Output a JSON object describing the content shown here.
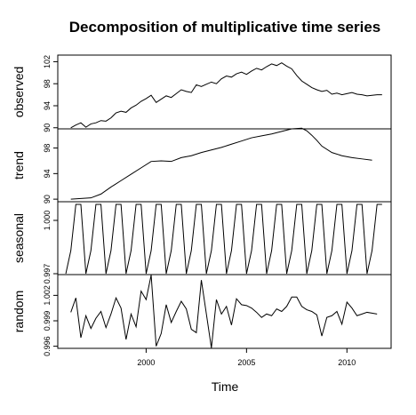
{
  "chart_data": {
    "type": "line",
    "title": "Decomposition of multiplicative time series",
    "xlabel": "Time",
    "xlim": [
      1995.6,
      2012.2
    ],
    "x_ticks": [
      "2000",
      "2005",
      "2010"
    ],
    "panels": [
      {
        "name": "observed",
        "ylabel": "observed",
        "ylim": [
          89.8,
          103.2
        ],
        "y_ticks": [
          "90",
          "94",
          "98",
          "102"
        ],
        "x": [
          1996.25,
          1996.5,
          1996.75,
          1997.0,
          1997.25,
          1997.5,
          1997.75,
          1998.0,
          1998.25,
          1998.5,
          1998.75,
          1999.0,
          1999.25,
          1999.5,
          1999.75,
          2000.0,
          2000.25,
          2000.5,
          2000.75,
          2001.0,
          2001.25,
          2001.5,
          2001.75,
          2002.0,
          2002.25,
          2002.5,
          2002.75,
          2003.0,
          2003.25,
          2003.5,
          2003.75,
          2004.0,
          2004.25,
          2004.5,
          2004.75,
          2005.0,
          2005.25,
          2005.5,
          2005.75,
          2006.0,
          2006.25,
          2006.5,
          2006.75,
          2007.0,
          2007.25,
          2007.5,
          2007.75,
          2008.0,
          2008.25,
          2008.5,
          2008.75,
          2009.0,
          2009.25,
          2009.5,
          2009.75,
          2010.0,
          2010.25,
          2010.5,
          2010.75,
          2011.0,
          2011.25,
          2011.5,
          2011.75
        ],
        "values": [
          90.0,
          90.5,
          90.9,
          90.1,
          90.7,
          90.9,
          91.3,
          91.2,
          91.8,
          92.7,
          93.0,
          92.8,
          93.6,
          94.1,
          94.8,
          95.3,
          95.9,
          94.6,
          95.2,
          95.8,
          95.5,
          96.2,
          96.9,
          96.6,
          96.4,
          97.8,
          97.5,
          97.9,
          98.3,
          98.0,
          98.9,
          99.4,
          99.2,
          99.8,
          100.1,
          99.7,
          100.3,
          100.8,
          100.5,
          101.1,
          101.6,
          101.3,
          101.8,
          101.2,
          100.7,
          99.5,
          98.5,
          97.9,
          97.3,
          96.9,
          96.6,
          96.8,
          96.1,
          96.3,
          96.0,
          96.2,
          96.4,
          96.1,
          96.0,
          95.8,
          95.9,
          96.0,
          96.0
        ]
      },
      {
        "name": "trend",
        "ylabel": "trend",
        "ylim": [
          89.6,
          101.0
        ],
        "y_ticks": [
          "90",
          "94",
          "98"
        ],
        "x": [
          1996.25,
          1996.75,
          1997.25,
          1997.75,
          1998.25,
          1998.75,
          1999.25,
          1999.75,
          2000.25,
          2000.75,
          2001.25,
          2001.75,
          2002.25,
          2002.75,
          2003.25,
          2003.75,
          2004.25,
          2004.75,
          2005.25,
          2005.75,
          2006.25,
          2006.75,
          2007.25,
          2007.75,
          2008.0,
          2008.25,
          2008.5,
          2008.75,
          2009.25,
          2009.75,
          2010.25,
          2010.75,
          2011.25
        ],
        "values": [
          90.0,
          90.1,
          90.2,
          90.8,
          91.9,
          92.9,
          93.9,
          94.9,
          95.9,
          96.0,
          95.9,
          96.5,
          96.8,
          97.3,
          97.7,
          98.1,
          98.6,
          99.1,
          99.6,
          99.9,
          100.2,
          100.6,
          101.0,
          101.1,
          100.7,
          100.0,
          99.2,
          98.3,
          97.3,
          96.8,
          96.5,
          96.3,
          96.1
        ]
      },
      {
        "name": "seasonal",
        "ylabel": "seasonal",
        "ylim": [
          0.99695,
          1.00105
        ],
        "y_ticks": [
          "0.997",
          "1.000"
        ],
        "x": [
          1996.0,
          1996.25,
          1996.5,
          1996.75,
          1997.0,
          1997.25,
          1997.5,
          1997.75,
          1998.0,
          1998.25,
          1998.5,
          1998.75,
          1999.0,
          1999.25,
          1999.5,
          1999.75,
          2000.0,
          2000.25,
          2000.5,
          2000.75,
          2001.0,
          2001.25,
          2001.5,
          2001.75,
          2002.0,
          2002.25,
          2002.5,
          2002.75,
          2003.0,
          2003.25,
          2003.5,
          2003.75,
          2004.0,
          2004.25,
          2004.5,
          2004.75,
          2005.0,
          2005.25,
          2005.5,
          2005.75,
          2006.0,
          2006.25,
          2006.5,
          2006.75,
          2007.0,
          2007.25,
          2007.5,
          2007.75,
          2008.0,
          2008.25,
          2008.5,
          2008.75,
          2009.0,
          2009.25,
          2009.5,
          2009.75,
          2010.0,
          2010.25,
          2010.5,
          2010.75,
          2011.0,
          2011.25,
          2011.5,
          2011.75
        ],
        "values": [
          0.997,
          0.9983,
          1.0009,
          1.0009,
          0.997,
          0.9983,
          1.0009,
          1.0009,
          0.997,
          0.9983,
          1.0009,
          1.0009,
          0.997,
          0.9983,
          1.0009,
          1.0009,
          0.997,
          0.9983,
          1.0009,
          1.0009,
          0.997,
          0.9983,
          1.0009,
          1.0009,
          0.997,
          0.9983,
          1.0009,
          1.0009,
          0.997,
          0.9983,
          1.0009,
          1.0009,
          0.997,
          0.9983,
          1.0009,
          1.0009,
          0.997,
          0.9983,
          1.0009,
          1.0009,
          0.997,
          0.9983,
          1.0009,
          1.0009,
          0.997,
          0.9983,
          1.0009,
          1.0009,
          0.997,
          0.9983,
          1.0009,
          1.0009,
          0.997,
          0.9983,
          1.0009,
          1.0009,
          0.997,
          0.9983,
          1.0009,
          1.0009,
          0.997,
          0.9983,
          1.0009,
          1.0009
        ]
      },
      {
        "name": "random",
        "ylabel": "random",
        "ylim": [
          0.99575,
          1.00445
        ],
        "y_ticks": [
          "0.996",
          "0.999",
          "1.002"
        ],
        "x": [
          1996.25,
          1996.5,
          1996.75,
          1997.0,
          1997.25,
          1997.5,
          1997.75,
          1998.0,
          1998.25,
          1998.5,
          1998.75,
          1999.0,
          1999.25,
          1999.5,
          1999.75,
          2000.0,
          2000.25,
          2000.5,
          2000.75,
          2001.0,
          2001.25,
          2001.5,
          2001.75,
          2002.0,
          2002.25,
          2002.5,
          2002.75,
          2003.0,
          2003.25,
          2003.5,
          2003.75,
          2004.0,
          2004.25,
          2004.5,
          2004.75,
          2005.0,
          2005.25,
          2005.5,
          2005.75,
          2006.0,
          2006.25,
          2006.5,
          2006.75,
          2007.0,
          2007.25,
          2007.5,
          2007.75,
          2008.0,
          2008.25,
          2008.5,
          2008.75,
          2009.0,
          2009.25,
          2009.5,
          2009.75,
          2010.0,
          2010.25,
          2010.5,
          2010.75,
          2011.0,
          2011.25,
          2011.5
        ],
        "values": [
          1.0,
          1.0017,
          0.997,
          0.9996,
          0.9981,
          0.9993,
          1.0001,
          0.9982,
          0.9998,
          1.0017,
          1.0005,
          0.9968,
          0.9998,
          0.9983,
          1.0025,
          1.0015,
          1.0044,
          0.996,
          0.9975,
          1.0009,
          0.9988,
          1.0001,
          1.0013,
          1.0004,
          0.998,
          0.9976,
          1.0038,
          0.9998,
          0.9958,
          1.0015,
          0.9998,
          1.0007,
          0.9985,
          1.0016,
          1.0009,
          1.0008,
          1.0005,
          1.0,
          0.9994,
          0.9998,
          0.9996,
          1.0004,
          1.0001,
          1.0007,
          1.0018,
          1.0018,
          1.0007,
          1.0003,
          1.0001,
          0.9997,
          0.9972,
          0.9994,
          0.9996,
          1.0001,
          0.9986,
          1.0012,
          1.0005,
          0.9996,
          0.9998,
          1.0,
          0.9999,
          0.9998
        ]
      }
    ]
  }
}
